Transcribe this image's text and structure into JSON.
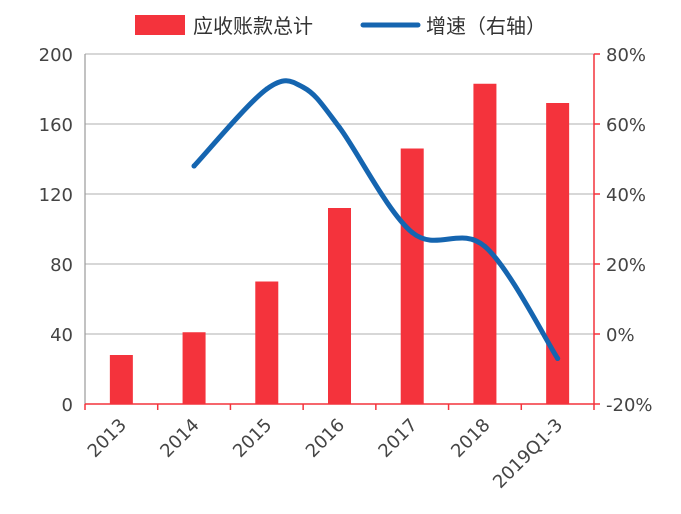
{
  "chart_data": {
    "type": "bar",
    "categories": [
      "2013",
      "2014",
      "2015",
      "2016",
      "2017",
      "2018",
      "2019Q1-3"
    ],
    "series": [
      {
        "name": "应收账款总计",
        "type": "bar",
        "axis": "left",
        "color": "#f4333c",
        "values": [
          28,
          41,
          70,
          112,
          146,
          183,
          172
        ]
      },
      {
        "name": "增速（右轴）",
        "type": "line",
        "axis": "right",
        "color": "#1565b0",
        "values": [
          null,
          48,
          70,
          59,
          29,
          25,
          -7
        ],
        "unit": "%",
        "extrema": [
          {
            "x": 2.5,
            "y": 70.5
          }
        ]
      }
    ],
    "left_axis": {
      "ylim": [
        0,
        200
      ],
      "ticks": [
        0,
        40,
        80,
        120,
        160,
        200
      ]
    },
    "right_axis": {
      "ylim": [
        -20,
        80
      ],
      "ticks": [
        "-20%",
        "0%",
        "20%",
        "40%",
        "60%",
        "80%"
      ]
    },
    "grid": true,
    "legend": "top"
  },
  "legend": {
    "bar_label": "应收账款总计",
    "line_label": "增速（右轴）"
  },
  "colors": {
    "bar": "#f4333c",
    "line": "#1565b0",
    "right_axis": "#f4333c",
    "grid": "#bfbfbf"
  }
}
